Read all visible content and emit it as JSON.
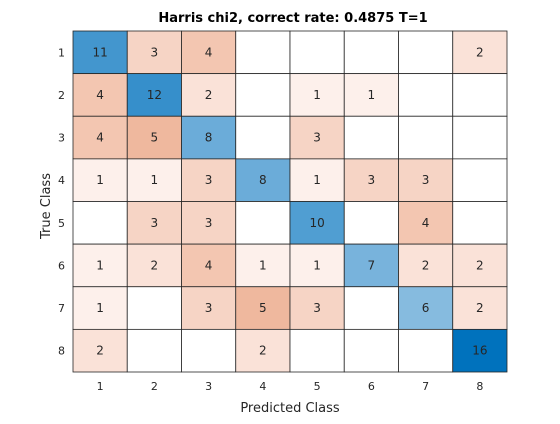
{
  "chart_data": {
    "type": "heatmap",
    "title": "Harris chi2, correct rate: 0.4875 T=1",
    "xlabel": "Predicted Class",
    "ylabel": "True Class",
    "x_categories": [
      "1",
      "2",
      "3",
      "4",
      "5",
      "6",
      "7",
      "8"
    ],
    "y_categories": [
      "1",
      "2",
      "3",
      "4",
      "5",
      "6",
      "7",
      "8"
    ],
    "matrix": [
      [
        11,
        3,
        4,
        null,
        null,
        null,
        null,
        2
      ],
      [
        4,
        12,
        2,
        null,
        1,
        1,
        null,
        null
      ],
      [
        4,
        5,
        8,
        null,
        3,
        null,
        null,
        null
      ],
      [
        1,
        1,
        3,
        8,
        1,
        3,
        3,
        null
      ],
      [
        null,
        3,
        3,
        null,
        10,
        null,
        4,
        null
      ],
      [
        1,
        2,
        4,
        1,
        1,
        7,
        2,
        2
      ],
      [
        1,
        null,
        3,
        5,
        3,
        null,
        6,
        2
      ],
      [
        2,
        null,
        null,
        2,
        null,
        null,
        null,
        16
      ]
    ],
    "colors": {
      "diagonal_light": "#d6e6f4",
      "diagonal_dark": "#0072bd",
      "offdiag_light": "#fdf0eb",
      "offdiag_dark": "#efb89e",
      "grid": "#262626",
      "text": "#262626"
    }
  }
}
